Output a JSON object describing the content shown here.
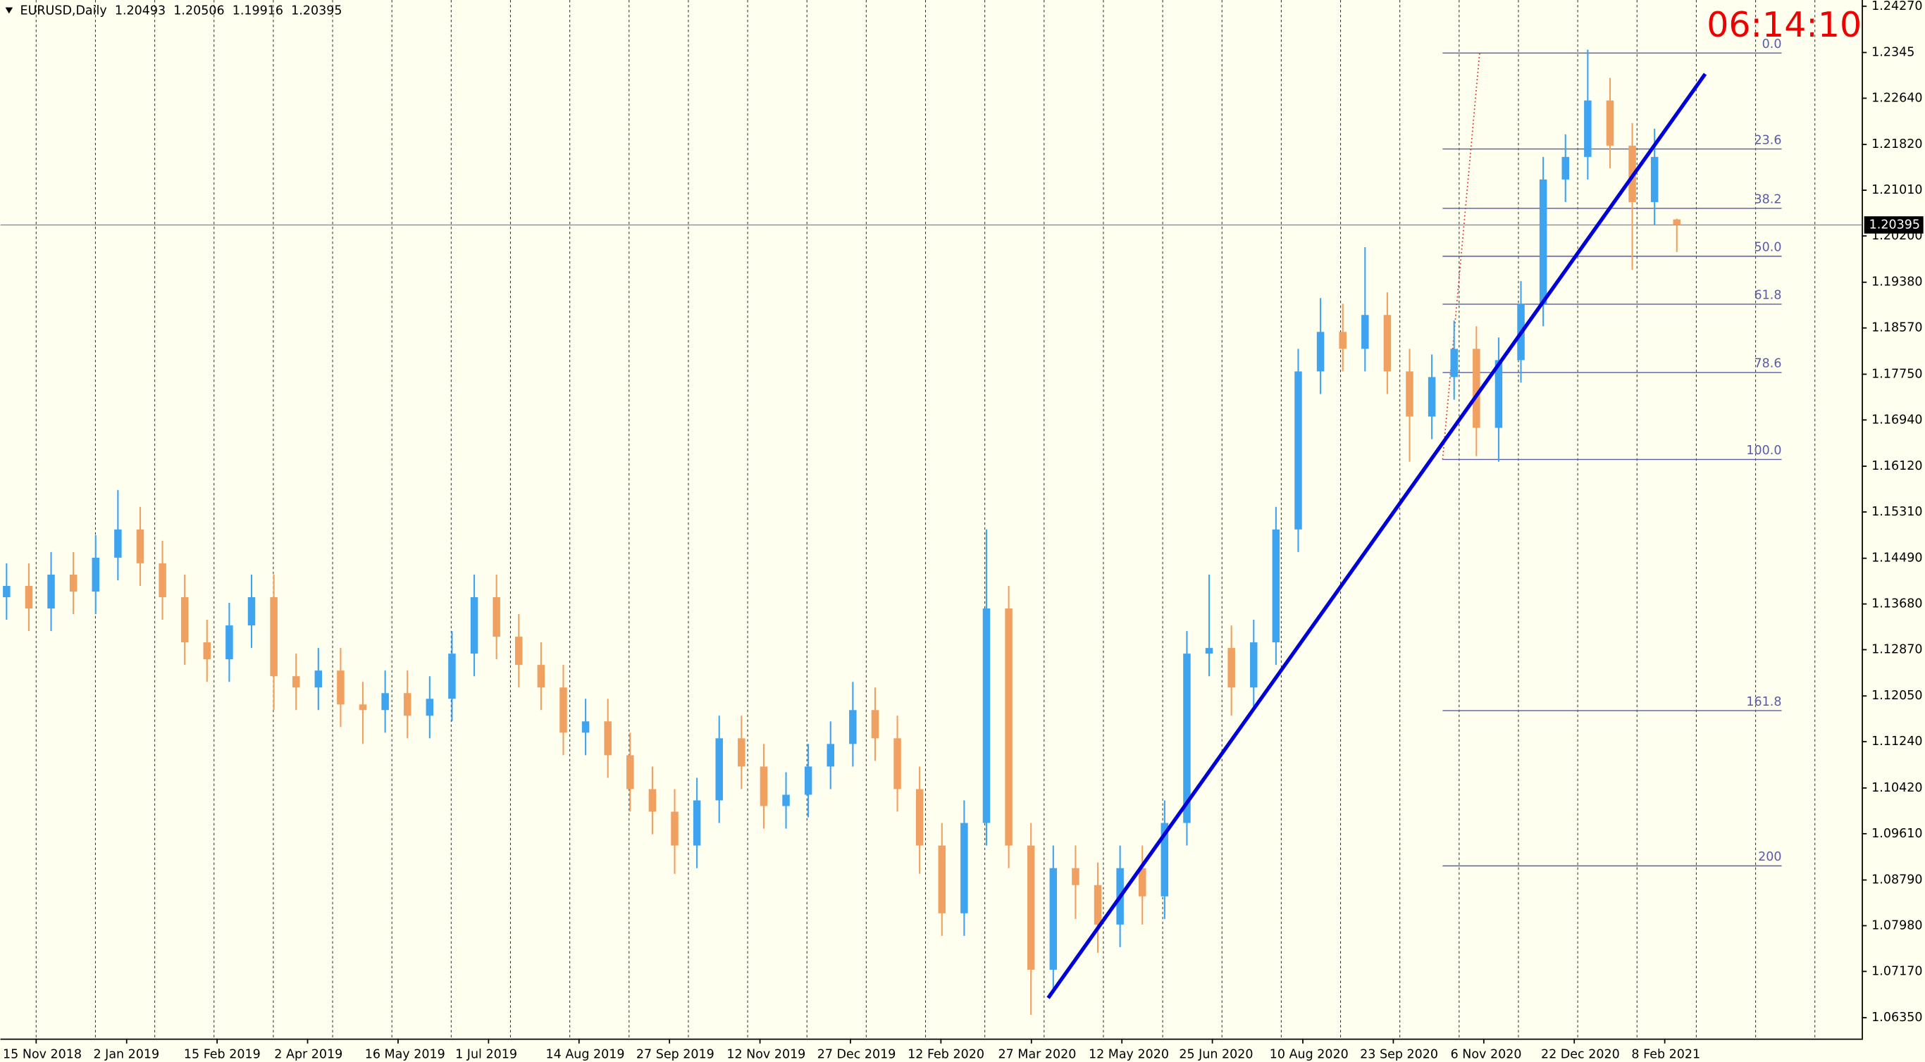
{
  "chart_data": {
    "type": "candlestick",
    "symbol": "EURUSD,Daily",
    "clock": "06:14:10",
    "date_labels": [
      "15 Nov 2018",
      "2 Jan 2019",
      "15 Feb 2019",
      "2 Apr 2019",
      "16 May 2019",
      "1 Jul 2019",
      "14 Aug 2019",
      "27 Sep 2019",
      "12 Nov 2019",
      "27 Dec 2019",
      "12 Feb 2020",
      "27 Mar 2020",
      "12 May 2020",
      "25 Jun 2020",
      "10 Aug 2020",
      "23 Sep 2020",
      "6 Nov 2020",
      "22 Dec 2020",
      "8 Feb 2021"
    ],
    "open": [
      1.138,
      1.14,
      1.136,
      1.142,
      1.139,
      1.145,
      1.15,
      1.144,
      1.138,
      1.13,
      1.127,
      1.133,
      1.138,
      1.124,
      1.122,
      1.125,
      1.119,
      1.118,
      1.121,
      1.117,
      1.12,
      1.128,
      1.138,
      1.131,
      1.126,
      1.122,
      1.114,
      1.116,
      1.11,
      1.104,
      1.1,
      1.094,
      1.102,
      1.113,
      1.108,
      1.101,
      1.103,
      1.108,
      1.112,
      1.118,
      1.113,
      1.104,
      1.094,
      1.082,
      1.098,
      1.136,
      1.094,
      1.072,
      1.09,
      1.087,
      1.08,
      1.09,
      1.085,
      1.098,
      1.128,
      1.129,
      1.122,
      1.13,
      1.15,
      1.178,
      1.185,
      1.182,
      1.188,
      1.178,
      1.17,
      1.177,
      1.182,
      1.168,
      1.18,
      1.19,
      1.212,
      1.216,
      1.226,
      1.218,
      1.208,
      1.20493
    ],
    "high": [
      1.144,
      1.144,
      1.146,
      1.146,
      1.149,
      1.157,
      1.154,
      1.148,
      1.142,
      1.134,
      1.137,
      1.142,
      1.142,
      1.128,
      1.129,
      1.129,
      1.123,
      1.125,
      1.125,
      1.124,
      1.132,
      1.142,
      1.142,
      1.135,
      1.13,
      1.126,
      1.12,
      1.12,
      1.114,
      1.108,
      1.104,
      1.106,
      1.117,
      1.117,
      1.112,
      1.107,
      1.112,
      1.116,
      1.123,
      1.122,
      1.117,
      1.108,
      1.098,
      1.102,
      1.15,
      1.14,
      1.098,
      1.094,
      1.094,
      1.091,
      1.094,
      1.094,
      1.102,
      1.132,
      1.142,
      1.133,
      1.134,
      1.154,
      1.182,
      1.191,
      1.19,
      1.2,
      1.192,
      1.182,
      1.181,
      1.187,
      1.186,
      1.184,
      1.194,
      1.216,
      1.22,
      1.235,
      1.23,
      1.222,
      1.221,
      1.20506
    ],
    "low": [
      1.134,
      1.132,
      1.132,
      1.135,
      1.135,
      1.141,
      1.14,
      1.134,
      1.126,
      1.123,
      1.123,
      1.129,
      1.118,
      1.118,
      1.118,
      1.115,
      1.112,
      1.114,
      1.113,
      1.113,
      1.116,
      1.124,
      1.127,
      1.122,
      1.118,
      1.11,
      1.11,
      1.106,
      1.1,
      1.096,
      1.089,
      1.09,
      1.098,
      1.104,
      1.097,
      1.097,
      1.099,
      1.104,
      1.108,
      1.109,
      1.1,
      1.089,
      1.078,
      1.078,
      1.094,
      1.09,
      1.064,
      1.068,
      1.081,
      1.075,
      1.076,
      1.08,
      1.081,
      1.094,
      1.124,
      1.117,
      1.118,
      1.126,
      1.146,
      1.174,
      1.178,
      1.178,
      1.174,
      1.162,
      1.166,
      1.173,
      1.163,
      1.162,
      1.176,
      1.186,
      1.208,
      1.212,
      1.214,
      1.196,
      1.204,
      1.19916
    ],
    "close": [
      1.14,
      1.136,
      1.142,
      1.139,
      1.145,
      1.15,
      1.144,
      1.138,
      1.13,
      1.127,
      1.133,
      1.138,
      1.124,
      1.122,
      1.125,
      1.119,
      1.118,
      1.121,
      1.117,
      1.12,
      1.128,
      1.138,
      1.131,
      1.126,
      1.122,
      1.114,
      1.116,
      1.11,
      1.104,
      1.1,
      1.094,
      1.102,
      1.113,
      1.108,
      1.101,
      1.103,
      1.108,
      1.112,
      1.118,
      1.113,
      1.104,
      1.094,
      1.082,
      1.098,
      1.136,
      1.094,
      1.072,
      1.09,
      1.087,
      1.08,
      1.09,
      1.085,
      1.098,
      1.128,
      1.129,
      1.122,
      1.13,
      1.15,
      1.178,
      1.185,
      1.182,
      1.188,
      1.178,
      1.17,
      1.177,
      1.182,
      1.168,
      1.18,
      1.19,
      1.212,
      1.216,
      1.226,
      1.218,
      1.208,
      1.216,
      1.20395
    ],
    "up_color": "#3fa4f0",
    "down_color": "#f0a060",
    "ylim": [
      1.0598,
      1.2438
    ],
    "yticks": [
      {
        "value": 1.2427,
        "label": "1.24270"
      },
      1.2345,
      {
        "value": 1.2264,
        "label": "1.22640"
      },
      {
        "value": 1.2182,
        "label": "1.21820"
      },
      {
        "value": 1.2101,
        "label": "1.21010"
      },
      {
        "value": 1.202,
        "label": "1.20200"
      },
      {
        "value": 1.1938,
        "label": "1.19380"
      },
      {
        "value": 1.1857,
        "label": "1.18570"
      },
      {
        "value": 1.1775,
        "label": "1.17750"
      },
      {
        "value": 1.1694,
        "label": "1.16940"
      },
      {
        "value": 1.1612,
        "label": "1.16120"
      },
      {
        "value": 1.1531,
        "label": "1.15310"
      },
      {
        "value": 1.1449,
        "label": "1.14490"
      },
      {
        "value": 1.1368,
        "label": "1.13680"
      },
      {
        "value": 1.1287,
        "label": "1.12870"
      },
      {
        "value": 1.1205,
        "label": "1.12050"
      },
      {
        "value": 1.1124,
        "label": "1.11240"
      },
      {
        "value": 1.1042,
        "label": "1.10420"
      },
      {
        "value": 1.0961,
        "label": "1.09610"
      },
      {
        "value": 1.0879,
        "label": "1.08790"
      },
      {
        "value": 1.0798,
        "label": "1.07980"
      },
      {
        "value": 1.0717,
        "label": "1.07170"
      },
      {
        "value": 1.0635,
        "label": "1.06350"
      }
    ],
    "grid": true,
    "fibonacci": {
      "high": 1.2344,
      "low": 1.1624,
      "color": "#5a5aa8",
      "levels": [
        {
          "value": 0,
          "label": "0.0"
        },
        23.6,
        38.2,
        {
          "value": 50,
          "label": "50.0"
        },
        61.8,
        78.6,
        {
          "value": 100,
          "label": "100.0"
        },
        161.8,
        200
      ]
    },
    "trendline": {
      "start": 1.067,
      "end": 1.2307,
      "color": "#0000d8"
    }
  }
}
